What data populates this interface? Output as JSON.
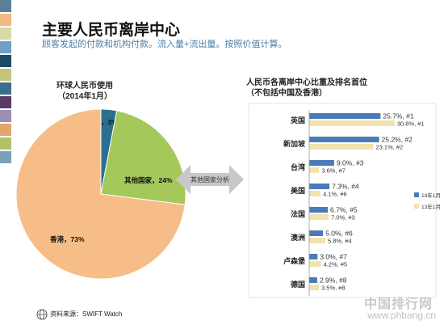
{
  "title": "主要人民币离岸中心",
  "subtitle": "顾客发起的付款和机构付款。流入量+流出量。按照价值计算。",
  "colors": {
    "stripe": [
      "#5b7f9a",
      "#f3b985",
      "#d7d9a7",
      "#6da1c9",
      "#1e4a63",
      "#c4c57a",
      "#3d6d8c",
      "#5a3b63",
      "#9b8fb3",
      "#e2a56a",
      "#b1c26a",
      "#7aa0bc"
    ],
    "pie": [
      "#2a6e92",
      "#a5c85a",
      "#f6bd88"
    ],
    "bar_2014": "#4a7bb6",
    "bar_2013": "#f1e3ad",
    "watermark": "#c9c9c9"
  },
  "pie_title": "环球人民币使用\n（2014年1月）",
  "bar_title": "人民币各离岸中心比重及排名首位\n（不包括中国及香港）",
  "arrow_label": "其他国家分析",
  "source": "资料来源：SWIFT Watch",
  "watermark_cn": "中国排行网",
  "watermark_url": "www.phbang.cn",
  "chart_data": [
    {
      "type": "pie",
      "slices": [
        {
          "label": "中国",
          "value": 3,
          "text": "中国，3%"
        },
        {
          "label": "其他国家",
          "value": 24,
          "text": "其他国家，24%"
        },
        {
          "label": "香港",
          "value": 73,
          "text": "香港，73%"
        }
      ]
    },
    {
      "type": "bar",
      "categories": [
        "英国",
        "新加坡",
        "台湾",
        "美国",
        "法国",
        "澳洲",
        "卢森堡",
        "德国"
      ],
      "series": [
        {
          "name": "14年1月",
          "values": [
            25.7,
            25.2,
            9.0,
            7.3,
            6.7,
            5.0,
            3.0,
            2.9
          ],
          "labels": [
            "25.7%, #1",
            "25.2%, #2",
            "9.0%, #3",
            "7.3%, #4",
            "6.7%, #5",
            "5.0%, #6",
            "3.0%, #7",
            "2.9%, #8"
          ]
        },
        {
          "name": "13年1月",
          "values": [
            30.8,
            23.1,
            3.6,
            4.1,
            7.0,
            5.8,
            4.2,
            3.5
          ],
          "labels": [
            "30.8%, #1",
            "23.1%, #2",
            "3.6%, #7",
            "4.1%, #6",
            "7.0%, #3",
            "5.8%, #4",
            "4.2%, #5",
            "3.5%, #8"
          ]
        }
      ],
      "legend_position": "right"
    }
  ]
}
